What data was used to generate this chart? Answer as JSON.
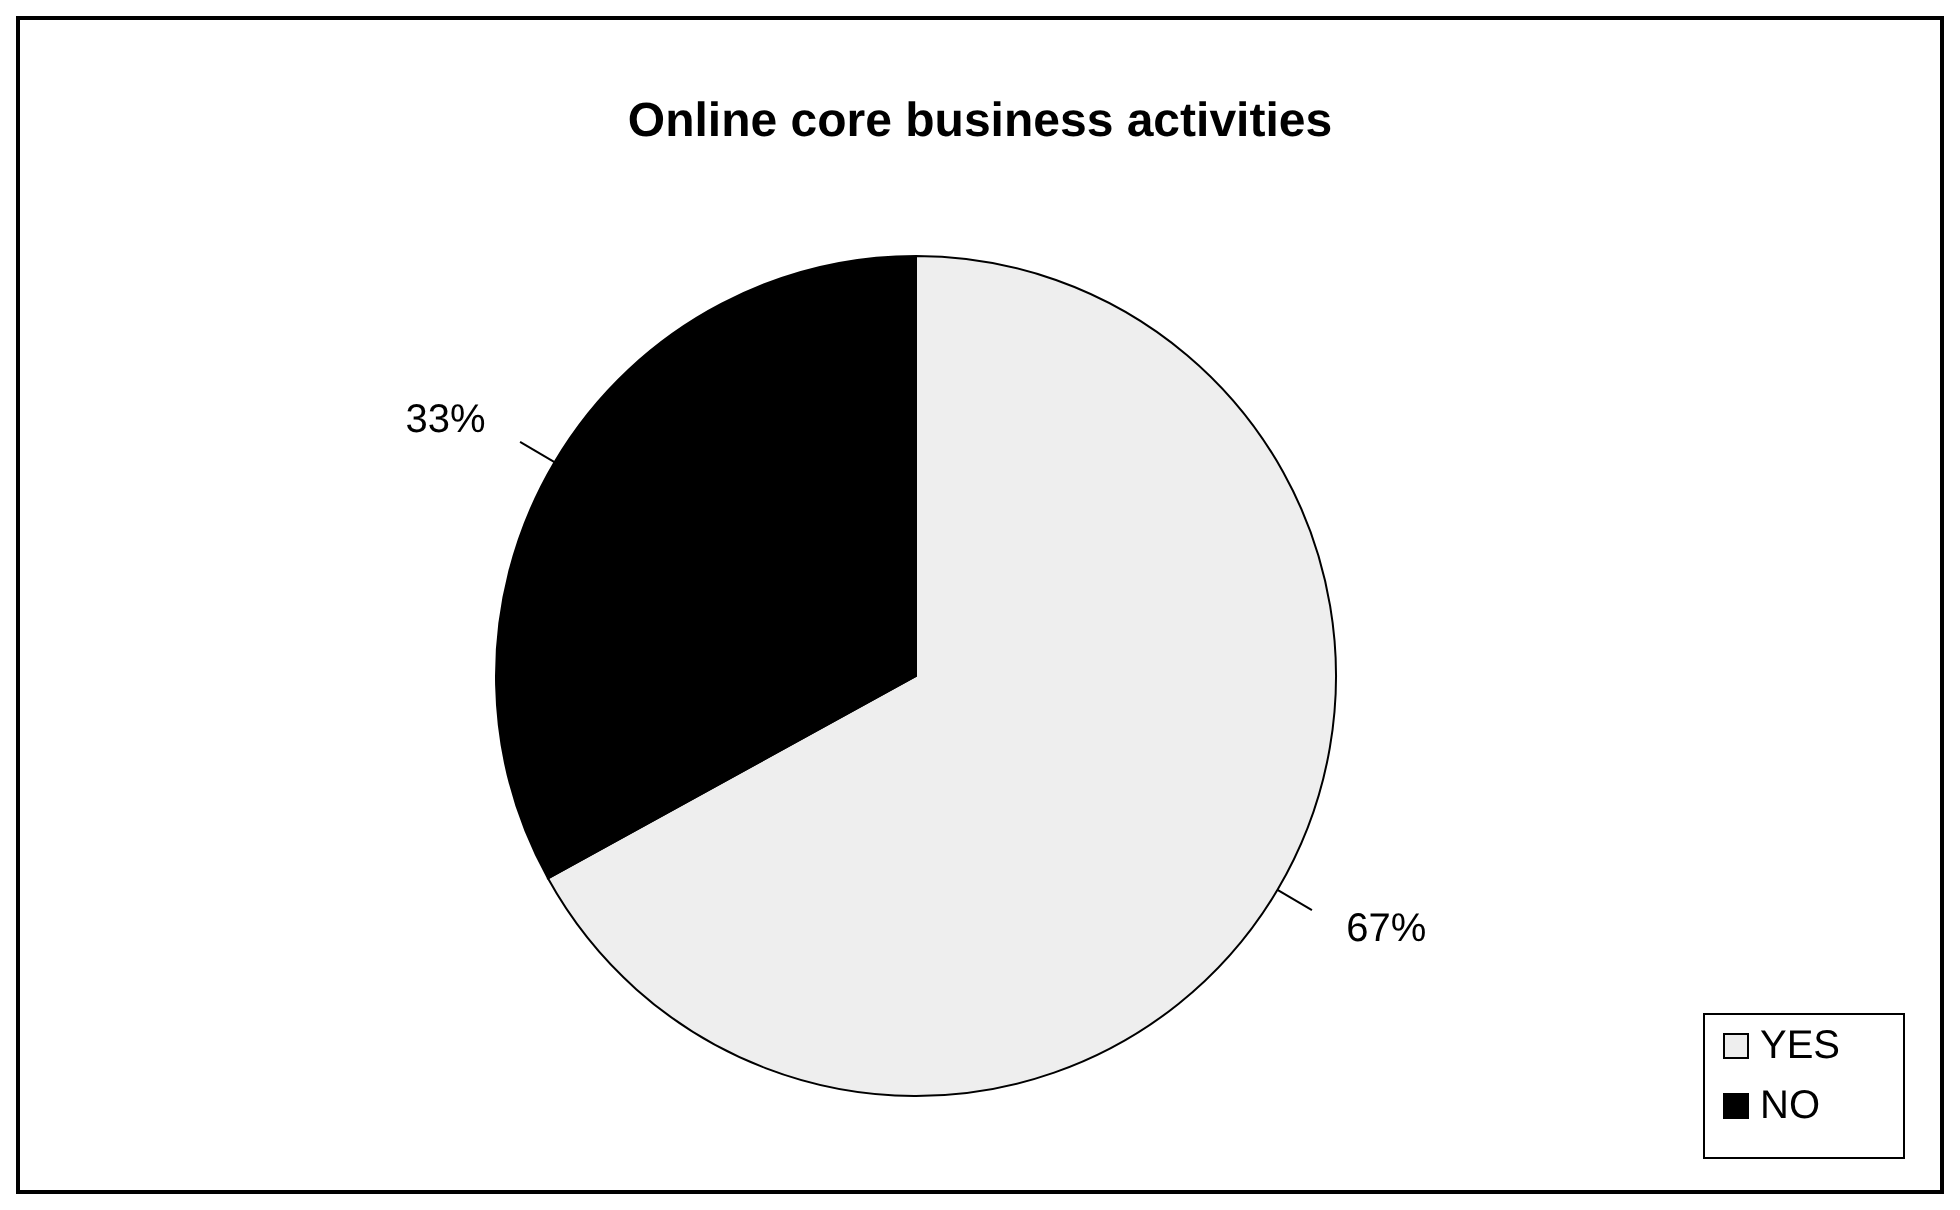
{
  "chart_data": {
    "type": "pie",
    "title": "Online core business activities",
    "categories": [
      "YES",
      "NO"
    ],
    "values": [
      67,
      33
    ],
    "colors": [
      "#eeeeee",
      "#000000"
    ],
    "value_labels": [
      "67%",
      "33%"
    ],
    "legend": "bottom right"
  }
}
